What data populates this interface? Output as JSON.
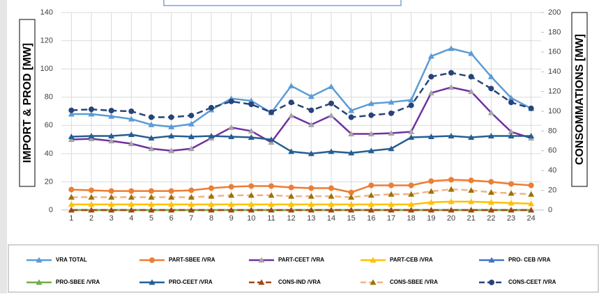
{
  "chart_data": {
    "type": "line",
    "y_label": "IMPORT & PROD [MW]",
    "y2_label": "CONSOMMATIONS [MW]",
    "categories": [
      "1",
      "2",
      "3",
      "4",
      "5",
      "6",
      "7",
      "8",
      "9",
      "10",
      "11",
      "12",
      "13",
      "14",
      "15",
      "16",
      "17",
      "18",
      "19",
      "20",
      "21",
      "22",
      "23",
      "24"
    ],
    "ylim": [
      0,
      140
    ],
    "yticks": [
      0,
      20,
      40,
      60,
      80,
      100,
      120,
      140
    ],
    "y2lim": [
      0,
      200
    ],
    "y2ticks": [
      0,
      20,
      40,
      60,
      80,
      100,
      120,
      140,
      160,
      180,
      200
    ],
    "grid": true,
    "series": [
      {
        "name": "VRA TOTAL",
        "color": "#5b9bd5",
        "marker": "triangle",
        "marker_color": "#5b9bd5",
        "dash": false,
        "values": [
          68,
          68,
          66.5,
          64.5,
          60.5,
          59,
          61,
          71,
          79,
          77.5,
          69,
          88,
          80.5,
          87.5,
          70.5,
          75.5,
          76.5,
          78,
          109,
          114.5,
          111,
          94.5,
          79.5,
          72
        ]
      },
      {
        "name": "PART-SBEE /VRA",
        "color": "#ed7d31",
        "marker": "circle",
        "marker_color": "#ed7d31",
        "dash": false,
        "values": [
          14.5,
          14,
          13.5,
          13.5,
          13.5,
          13.5,
          14,
          15.5,
          16.5,
          17,
          17,
          16,
          15.5,
          15.5,
          12.5,
          17.5,
          17.5,
          17.5,
          20.5,
          21.5,
          21,
          20,
          18.5,
          17.5
        ]
      },
      {
        "name": "PART-CEET /VRA",
        "color": "#7030a0",
        "marker": "triangle",
        "marker_color": "#a5a5a5",
        "dash": false,
        "values": [
          50,
          50.5,
          49,
          47,
          43.5,
          42,
          43.5,
          51,
          58.5,
          56,
          48,
          67,
          60.5,
          67,
          54,
          54,
          54.5,
          55.5,
          83,
          87,
          84,
          69,
          55.5,
          51
        ]
      },
      {
        "name": "PART-CEB /VRA",
        "color": "#ffc000",
        "marker": "triangle",
        "marker_color": "#ffc000",
        "dash": false,
        "values": [
          4,
          4,
          4,
          4,
          4,
          4,
          4,
          4,
          4,
          4,
          4,
          4,
          4,
          4,
          4,
          4,
          4,
          4,
          5.5,
          6,
          6,
          5.5,
          5,
          4.5
        ]
      },
      {
        "name": "PRO- CEB /VRA",
        "color": "#4472c4",
        "marker": "triangle",
        "marker_color": "#4472c4",
        "dash": false,
        "values": [
          0,
          0,
          0,
          0,
          0,
          0,
          0,
          0,
          0,
          0,
          0,
          0,
          0,
          0,
          0,
          0,
          0,
          0,
          0,
          0,
          0,
          0,
          0,
          0
        ]
      },
      {
        "name": "PRO-SBEE /VRA",
        "color": "#70ad47",
        "marker": "triangle",
        "marker_color": "#70ad47",
        "dash": false,
        "values": [
          0,
          0,
          0,
          0,
          0,
          0,
          0,
          0,
          0,
          0,
          0,
          0,
          0,
          0,
          0,
          0,
          0,
          0,
          0,
          0,
          0,
          0,
          0,
          0
        ]
      },
      {
        "name": "PRO-CEET /VRA",
        "color": "#255e91",
        "marker": "triangle",
        "marker_color": "#255e91",
        "dash": false,
        "values": [
          52,
          52.5,
          52.5,
          53.5,
          51,
          52.5,
          52,
          52.5,
          52,
          51.5,
          50,
          41.5,
          40,
          41.5,
          40.5,
          42,
          43.5,
          51.5,
          52,
          52.5,
          51.5,
          52.5,
          52.5,
          52.5
        ]
      },
      {
        "name": "CONS-IND /VRA",
        "color": "#9e480e",
        "marker": "triangle",
        "marker_color": "#9e480e",
        "dash": true,
        "axis": "y2",
        "values": [
          0,
          0,
          0,
          0,
          0,
          0,
          0,
          0,
          0,
          0,
          0,
          0,
          0,
          0,
          0,
          0,
          0,
          0,
          0,
          0,
          0,
          0,
          0,
          0
        ]
      },
      {
        "name": "CONS-SBEE  /VRA",
        "color": "#f4b183",
        "marker": "triangle",
        "marker_color": "#997300",
        "dash": true,
        "axis": "y2",
        "values": [
          13,
          13,
          13,
          13,
          13,
          13,
          13,
          14,
          15,
          15,
          15,
          14,
          14,
          14,
          13,
          15,
          16,
          16,
          19,
          21,
          20,
          18,
          17,
          16
        ]
      },
      {
        "name": "CONS-CEET  /VRA",
        "color": "#264478",
        "marker": "circle",
        "marker_color": "#264478",
        "dash": true,
        "axis": "y2",
        "values": [
          101,
          102,
          100.7,
          100,
          94,
          94,
          95.7,
          103.6,
          110,
          107,
          99,
          109,
          101,
          108,
          94,
          96,
          98,
          106,
          135,
          139,
          135,
          123,
          109,
          103
        ]
      }
    ]
  }
}
